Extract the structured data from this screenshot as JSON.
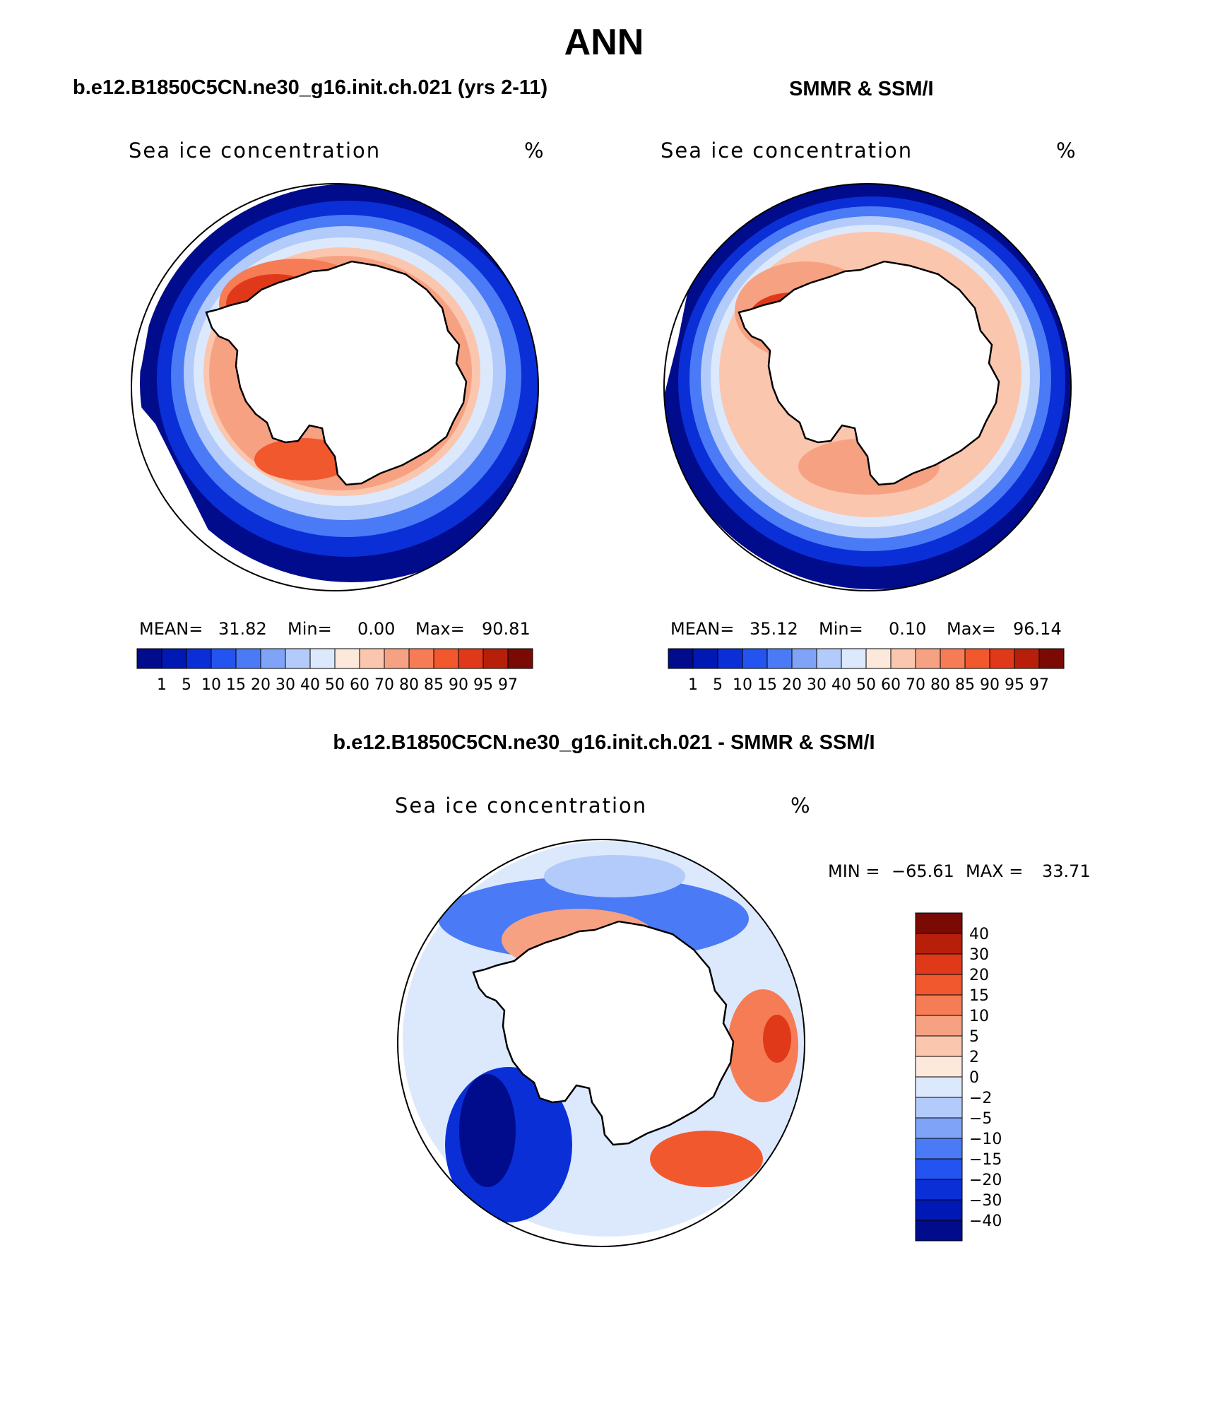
{
  "title": "ANN",
  "panels": {
    "left": {
      "title": "b.e12.B1850C5CN.ne30_g16.init.ch.021 (yrs 2-11)",
      "variable": "Sea ice concentration",
      "units": "%",
      "mean_label": "MEAN=",
      "mean": "31.82",
      "min_label": "Min=",
      "min": "0.00",
      "max_label": "Max=",
      "max": "90.81"
    },
    "right": {
      "title": "SMMR & SSM/I",
      "variable": "Sea ice concentration",
      "units": "%",
      "mean_label": "MEAN=",
      "mean": "35.12",
      "min_label": "Min=",
      "min": "0.10",
      "max_label": "Max=",
      "max": "96.14"
    },
    "diff": {
      "title": "b.e12.B1850C5CN.ne30_g16.init.ch.021 - SMMR & SSM/I",
      "variable": "Sea ice concentration",
      "units": "%",
      "min_label": "MIN =",
      "min": "−65.61",
      "max_label": "MAX =",
      "max": "33.71"
    }
  },
  "concentration_levels": [
    "1",
    "5",
    "10",
    "15",
    "20",
    "30",
    "40",
    "50",
    "60",
    "70",
    "80",
    "85",
    "90",
    "95",
    "97"
  ],
  "concentration_colors": [
    "#000c8c",
    "#0018b4",
    "#0a2fd6",
    "#2454f0",
    "#4a7af5",
    "#7fa3f7",
    "#b2cbfa",
    "#dce9fd",
    "#fde9dc",
    "#fbc6ae",
    "#f7a183",
    "#f57c55",
    "#f2582d",
    "#e0391a",
    "#b81f0a",
    "#7a0a04"
  ],
  "difference_levels": [
    "40",
    "30",
    "20",
    "15",
    "10",
    "5",
    "2",
    "0",
    "−2",
    "−5",
    "−10",
    "−15",
    "−20",
    "−30",
    "−40"
  ],
  "difference_colors": [
    "#7a0a04",
    "#b81f0a",
    "#e0391a",
    "#f2582d",
    "#f57c55",
    "#f7a183",
    "#fbc6ae",
    "#fde9dc",
    "#dce9fd",
    "#b2cbfa",
    "#7fa3f7",
    "#4a7af5",
    "#2454f0",
    "#0a2fd6",
    "#0018b4",
    "#000c8c"
  ],
  "map_palette": {
    "ocean_low": "#000c8c",
    "ice_mid": "#dce9fd",
    "ice_high": "#e0391a",
    "land": "#ffffff",
    "coast": "#000000"
  }
}
